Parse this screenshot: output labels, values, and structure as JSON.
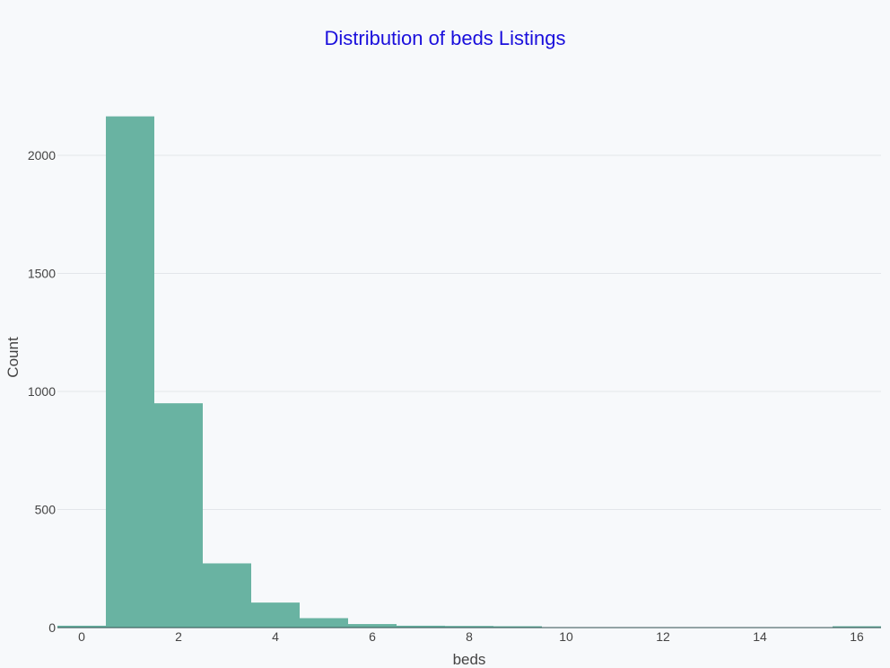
{
  "chart_data": {
    "type": "bar",
    "title": "Distribution of beds Listings",
    "xlabel": "beds",
    "ylabel": "Count",
    "categories": [
      "0",
      "1",
      "2",
      "3",
      "4",
      "5",
      "6",
      "7",
      "8",
      "9",
      "10",
      "11",
      "12",
      "13",
      "14",
      "15",
      "16"
    ],
    "values": [
      8,
      2165,
      950,
      272,
      106,
      40,
      15,
      8,
      7,
      3,
      0,
      0,
      0,
      0,
      0,
      0,
      2
    ],
    "xlim": [
      -0.5,
      16.5
    ],
    "ylim": [
      0,
      2165
    ],
    "xticks": [
      0,
      2,
      4,
      6,
      8,
      10,
      12,
      14,
      16
    ],
    "yticks": [
      0,
      500,
      1000,
      1500,
      2000
    ],
    "grid": "horizontal",
    "legend": "none"
  },
  "colors": {
    "bar": "#69b3a2",
    "title": "#1a0fdc",
    "background": "#f7f9fb",
    "grid": "#e3e6ea",
    "text": "#444444"
  }
}
